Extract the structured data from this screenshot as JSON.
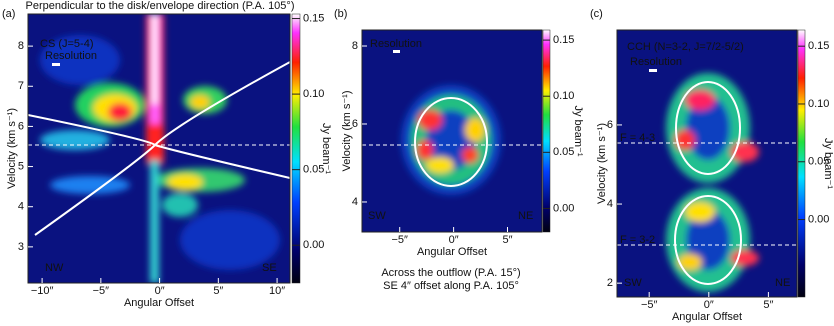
{
  "chart_data": [
    {
      "type": "heatmap",
      "panel_label": "(a)",
      "title": "Perpendicular to the disk/envelope direction (P.A. 105°)",
      "annotations": [
        "CS (J=5-4)",
        "Resolution",
        "NW",
        "SE"
      ],
      "xlabel": "Angular Offset",
      "ylabel": "Velocity (km s⁻¹)",
      "xlim": [
        -11.2,
        11.1
      ],
      "ylim": [
        2.1,
        8.8
      ],
      "xticks": [
        {
          "value": -10,
          "label": "−10″"
        },
        {
          "value": -5,
          "label": "−5″"
        },
        {
          "value": 0,
          "label": "0″"
        },
        {
          "value": 5,
          "label": "5″"
        },
        {
          "value": 10,
          "label": "10″"
        }
      ],
      "yticks": [
        3,
        4,
        5,
        6,
        7,
        8
      ],
      "colorbar": {
        "label": "Jy beam⁻¹",
        "lim": [
          -0.025,
          0.153
        ],
        "ticks": [
          {
            "value": 0,
            "label": "0.00"
          },
          0.05,
          {
            "value": 0.1,
            "label": "0.10"
          },
          0.15
        ]
      }
    },
    {
      "type": "heatmap",
      "panel_label": "(b)",
      "annotations": [
        "Resolution",
        "SW",
        "NE"
      ],
      "captions": [
        "Across the outflow (P.A. 15°)",
        "SE 4″ offset along P.A. 105°"
      ],
      "xlabel": "Angular Offset",
      "ylabel": "Velocity (km s⁻¹)",
      "xlim": [
        -8.5,
        8.2
      ],
      "ylim": [
        3.23,
        8.41
      ],
      "xticks": [
        {
          "value": -5,
          "label": "−5″"
        },
        {
          "value": 0,
          "label": "0″"
        },
        {
          "value": 5,
          "label": "5″"
        }
      ],
      "yticks": [
        4,
        6,
        8
      ],
      "colorbar": {
        "label": "Jy beam⁻¹",
        "lim": [
          -0.021,
          0.159
        ],
        "ticks": [
          {
            "value": 0,
            "label": "0.00"
          },
          0.05,
          {
            "value": 0.1,
            "label": "0.10"
          },
          0.15
        ]
      }
    },
    {
      "type": "heatmap",
      "panel_label": "(c)",
      "annotations": [
        "CCH (N=3-2, J=7/2-5/2)",
        "Resolution",
        "F = 4-3",
        "F = 3-2",
        "SW",
        "NE"
      ],
      "xlabel": "Angular Offset",
      "ylabel": "Velocity (km s⁻¹)",
      "xlim": [
        -7.7,
        7.4
      ],
      "ylim": [
        1.65,
        8.4
      ],
      "xticks": [
        {
          "value": -5,
          "label": "−5″"
        },
        {
          "value": 0,
          "label": "0″"
        },
        {
          "value": 5,
          "label": "5″"
        }
      ],
      "yticks": [
        2,
        4,
        6
      ],
      "colorbar": {
        "label": "Jy beam⁻¹",
        "lim": [
          -0.067,
          0.164
        ],
        "ticks": [
          {
            "value": 0,
            "label": "0.00"
          },
          0.05,
          {
            "value": 0.1,
            "label": "0.10"
          },
          0.15
        ]
      }
    }
  ]
}
